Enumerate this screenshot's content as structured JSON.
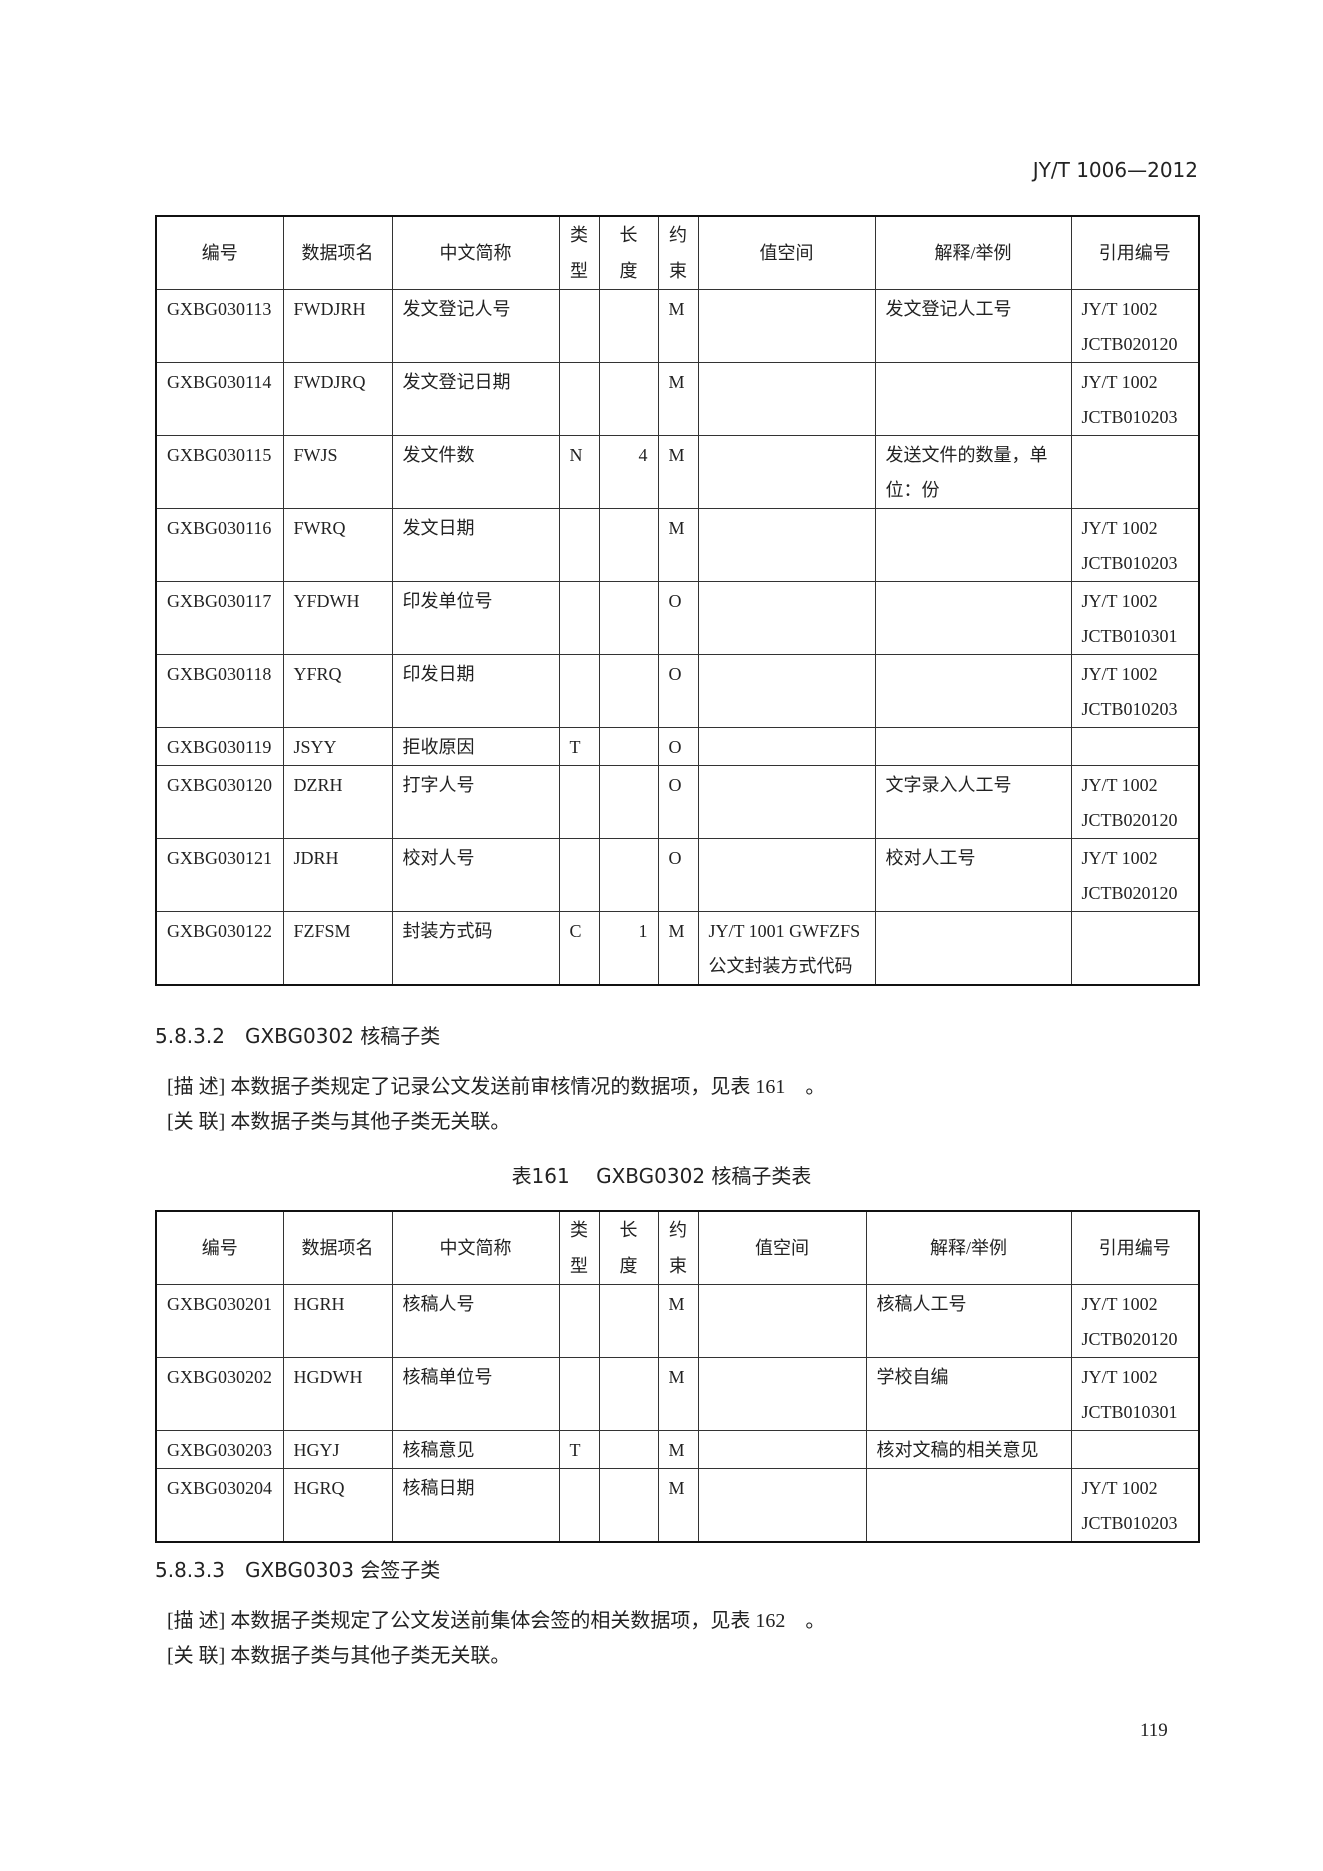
{
  "header": {
    "code": "JY/T 1006—2012"
  },
  "tables": [
    {
      "columns": [
        "编号",
        "数据项名",
        "中文简称",
        "类型",
        "长度",
        "约束",
        "值空间",
        "解释/举例",
        "引用编号"
      ],
      "rows": [
        [
          "GXBG030113",
          "FWDJRH",
          "发文登记人号",
          null,
          null,
          "M",
          null,
          "发文登记人工号",
          "JY/T 1002 JCTB020120"
        ],
        [
          "GXBG030114",
          "FWDJRQ",
          "发文登记日期",
          null,
          null,
          "M",
          null,
          null,
          "JY/T 1002 JCTB010203"
        ],
        [
          "GXBG030115",
          "FWJS",
          "发文件数",
          "N",
          "4",
          "M",
          null,
          "发送文件的数量，单位：份",
          null
        ],
        [
          "GXBG030116",
          "FWRQ",
          "发文日期",
          null,
          null,
          "M",
          null,
          null,
          "JY/T 1002 JCTB010203"
        ],
        [
          "GXBG030117",
          "YFDWH",
          "印发单位号",
          null,
          null,
          "O",
          null,
          null,
          "JY/T 1002 JCTB010301"
        ],
        [
          "GXBG030118",
          "YFRQ",
          "印发日期",
          null,
          null,
          "O",
          null,
          null,
          "JY/T 1002 JCTB010203"
        ],
        [
          "GXBG030119",
          "JSYY",
          "拒收原因",
          "T",
          null,
          "O",
          null,
          null,
          null
        ],
        [
          "GXBG030120",
          "DZRH",
          "打字人号",
          null,
          null,
          "O",
          null,
          "文字录入人工号",
          "JY/T 1002 JCTB020120"
        ],
        [
          "GXBG030121",
          "JDRH",
          "校对人号",
          null,
          null,
          "O",
          null,
          "校对人工号",
          "JY/T 1002 JCTB020120"
        ],
        [
          "GXBG030122",
          "FZFSM",
          "封装方式码",
          "C",
          "1",
          "M",
          "JY/T 1001 GWFZFS 公文封装方式代码",
          null,
          null
        ]
      ]
    },
    {
      "caption": "表161　 GXBG0302 核稿子类表",
      "columns": [
        "编号",
        "数据项名",
        "中文简称",
        "类型",
        "长度",
        "约束",
        "值空间",
        "解释/举例",
        "引用编号"
      ],
      "rows": [
        [
          "GXBG030201",
          "HGRH",
          "核稿人号",
          null,
          null,
          "M",
          null,
          "核稿人工号",
          "JY/T 1002 JCTB020120"
        ],
        [
          "GXBG030202",
          "HGDWH",
          "核稿单位号",
          null,
          null,
          "M",
          null,
          "学校自编",
          "JY/T 1002 JCTB010301"
        ],
        [
          "GXBG030203",
          "HGYJ",
          "核稿意见",
          "T",
          null,
          "M",
          null,
          "核对文稿的相关意见",
          null
        ],
        [
          "GXBG030204",
          "HGRQ",
          "核稿日期",
          null,
          null,
          "M",
          null,
          null,
          "JY/T 1002 JCTB010203"
        ]
      ]
    }
  ],
  "sections": [
    {
      "heading": "5.8.3.2　GXBG0302 核稿子类",
      "describe": "[描 述] 本数据子类规定了记录公文发送前审核情况的数据项，见表 161　。",
      "relate": "[关 联] 本数据子类与其他子类无关联。"
    },
    {
      "heading": "5.8.3.3　GXBG0303 会签子类",
      "describe": "[描 述] 本数据子类规定了公文发送前集体会签的相关数据项，见表 162　。",
      "relate": "[关 联] 本数据子类与其他子类无关联。"
    }
  ],
  "footer": {
    "page": "119"
  }
}
